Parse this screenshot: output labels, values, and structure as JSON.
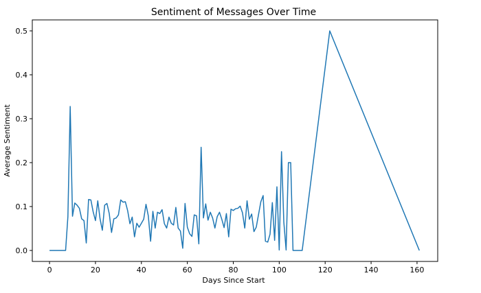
{
  "chart_data": {
    "type": "line",
    "title": "Sentiment of Messages Over Time",
    "xlabel": "Days Since Start",
    "ylabel": "Average Sentiment",
    "xlim": [
      -7.5,
      169
    ],
    "ylim": [
      -0.025,
      0.525
    ],
    "xticks": [
      0,
      20,
      40,
      60,
      80,
      100,
      120,
      140,
      160
    ],
    "yticks": [
      0.0,
      0.1,
      0.2,
      0.3,
      0.4,
      0.5
    ],
    "ytick_labels": [
      "0.0",
      "0.1",
      "0.2",
      "0.3",
      "0.4",
      "0.5"
    ],
    "grid": false,
    "line_color": "#1f77b4",
    "series": [
      {
        "x": [
          0,
          1,
          2,
          3,
          4,
          5,
          6,
          7,
          8,
          9,
          10,
          11,
          12,
          13,
          14,
          15,
          16,
          17,
          18,
          19,
          20,
          21,
          22,
          23,
          24,
          25,
          26,
          27,
          28,
          29,
          30,
          31,
          32,
          33,
          34,
          35,
          36,
          37,
          38,
          39,
          40,
          41,
          42,
          43,
          44,
          45,
          46,
          47,
          48,
          49,
          50,
          51,
          52,
          53,
          54,
          55,
          56,
          57,
          58,
          59,
          60,
          61,
          62,
          63,
          64,
          65,
          66,
          67,
          68,
          69,
          70,
          71,
          72,
          73,
          74,
          75,
          76,
          77,
          78,
          79,
          80,
          81,
          82,
          83,
          84,
          85,
          86,
          87,
          88,
          89,
          90,
          91,
          92,
          93,
          94,
          95,
          96,
          97,
          98,
          99,
          100,
          101,
          102,
          103,
          104,
          105,
          106,
          107,
          108,
          109,
          110,
          122,
          161
        ],
        "values": [
          0.0,
          0.0,
          0.0,
          0.0,
          0.0,
          0.0,
          0.0,
          0.0,
          0.077,
          0.328,
          0.078,
          0.108,
          0.103,
          0.096,
          0.072,
          0.068,
          0.017,
          0.116,
          0.115,
          0.088,
          0.068,
          0.113,
          0.072,
          0.046,
          0.103,
          0.107,
          0.084,
          0.041,
          0.072,
          0.074,
          0.081,
          0.115,
          0.11,
          0.111,
          0.091,
          0.061,
          0.076,
          0.031,
          0.062,
          0.053,
          0.062,
          0.071,
          0.105,
          0.079,
          0.021,
          0.089,
          0.051,
          0.087,
          0.084,
          0.093,
          0.061,
          0.051,
          0.076,
          0.062,
          0.058,
          0.098,
          0.051,
          0.044,
          0.005,
          0.107,
          0.053,
          0.038,
          0.032,
          0.081,
          0.079,
          0.015,
          0.235,
          0.074,
          0.106,
          0.069,
          0.087,
          0.074,
          0.051,
          0.077,
          0.087,
          0.071,
          0.052,
          0.084,
          0.031,
          0.094,
          0.091,
          0.095,
          0.096,
          0.101,
          0.086,
          0.051,
          0.113,
          0.071,
          0.083,
          0.043,
          0.053,
          0.082,
          0.111,
          0.125,
          0.021,
          0.019,
          0.037,
          0.109,
          0.023,
          0.145,
          0.001,
          0.225,
          0.065,
          0.001,
          0.2,
          0.2,
          0.0,
          0.0,
          0.0,
          0.0,
          0.0,
          0.5,
          0.0
        ]
      }
    ]
  }
}
